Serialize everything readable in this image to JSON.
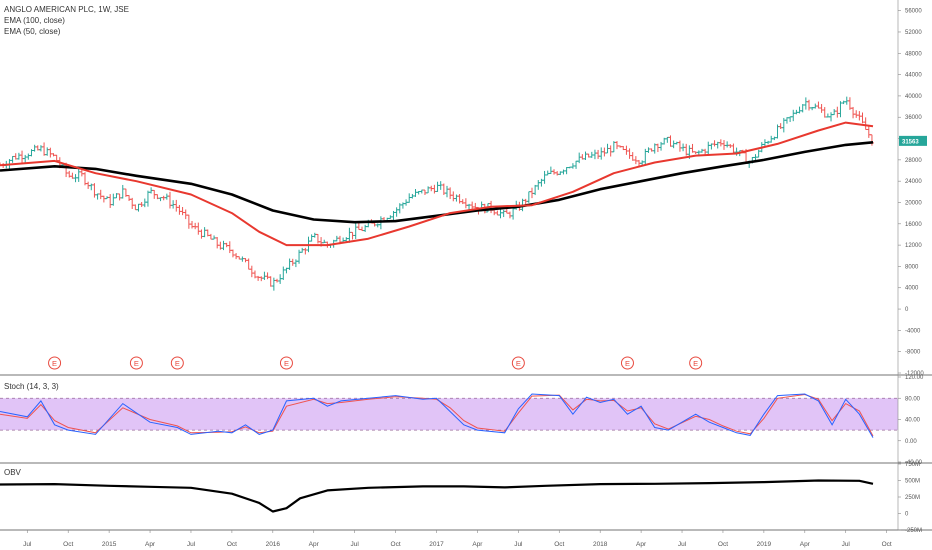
{
  "legend": {
    "symbol": "ANGLO AMERICAN PLC, 1W, JSE",
    "ema_long": "EMA (100, close)",
    "ema_short": "EMA (50, close)",
    "stoch": "Stoch (14, 3, 3)",
    "obv": "OBV"
  },
  "colors": {
    "up": "#26a69a",
    "down": "#ef5350",
    "ema_short": "#e8382f",
    "ema_long": "#000000",
    "stoch_k": "#2962ff",
    "stoch_d": "#ef5350",
    "stoch_band": "#e1c4f7",
    "price_tag": "#26a69a"
  },
  "chart_data": [
    {
      "type": "candlestick",
      "title": "ANGLO AMERICAN PLC, 1W, JSE",
      "ylim": [
        -12000,
        58000
      ],
      "y_ticks": [
        56000,
        52000,
        48000,
        44000,
        40000,
        36000,
        32000,
        28000,
        24000,
        20000,
        16000,
        12000,
        8000,
        4000,
        0,
        -4000,
        -8000,
        -12000
      ],
      "y_tick_labels": [
        "56000",
        "52000",
        "48000",
        "44000",
        "40000",
        "36000",
        "32000",
        "28000",
        "24000",
        "20000",
        "16000",
        "12000",
        "8000",
        "4000",
        "0",
        "-4000",
        "-8000",
        "-12000"
      ],
      "last_price": 31563,
      "last_price_label": "31563",
      "x_ticks": [
        "Jul",
        "Oct",
        "2015",
        "Apr",
        "Jul",
        "Oct",
        "2016",
        "Apr",
        "Jul",
        "Oct",
        "2017",
        "Apr",
        "Jul",
        "Oct",
        "2018",
        "Apr",
        "Jul",
        "Oct",
        "2019",
        "Apr",
        "Jul",
        "Oct"
      ],
      "price_path": [
        [
          "2014-05",
          27000
        ],
        [
          "2014-06",
          28500
        ],
        [
          "2014-08",
          30000
        ],
        [
          "2014-09",
          28500
        ],
        [
          "2014-10",
          25000
        ],
        [
          "2014-11",
          25000
        ],
        [
          "2014-12",
          22000
        ],
        [
          "2015-01",
          20000
        ],
        [
          "2015-02",
          22000
        ],
        [
          "2015-03",
          19000
        ],
        [
          "2015-04",
          22000
        ],
        [
          "2015-05",
          21000
        ],
        [
          "2015-06",
          19000
        ],
        [
          "2015-07",
          15500
        ],
        [
          "2015-08",
          14000
        ],
        [
          "2015-09",
          12000
        ],
        [
          "2015-10",
          11000
        ],
        [
          "2015-11",
          8500
        ],
        [
          "2015-12",
          6000
        ],
        [
          "2016-01",
          4800
        ],
        [
          "2016-02",
          7500
        ],
        [
          "2016-03",
          10500
        ],
        [
          "2016-04",
          13500
        ],
        [
          "2016-05",
          12000
        ],
        [
          "2016-06",
          13500
        ],
        [
          "2016-07",
          14500
        ],
        [
          "2016-08",
          15500
        ],
        [
          "2016-09",
          17000
        ],
        [
          "2016-10",
          18500
        ],
        [
          "2016-11",
          21000
        ],
        [
          "2016-12",
          22000
        ],
        [
          "2017-01",
          23000
        ],
        [
          "2017-02",
          21500
        ],
        [
          "2017-03",
          20500
        ],
        [
          "2017-04",
          19000
        ],
        [
          "2017-05",
          19000
        ],
        [
          "2017-06",
          17500
        ],
        [
          "2017-07",
          19000
        ],
        [
          "2017-08",
          22000
        ],
        [
          "2017-09",
          25000
        ],
        [
          "2017-10",
          26000
        ],
        [
          "2017-11",
          27500
        ],
        [
          "2017-12",
          28500
        ],
        [
          "2018-01",
          29000
        ],
        [
          "2018-02",
          30500
        ],
        [
          "2018-03",
          29000
        ],
        [
          "2018-04",
          28000
        ],
        [
          "2018-05",
          31000
        ],
        [
          "2018-06",
          31500
        ],
        [
          "2018-07",
          30000
        ],
        [
          "2018-08",
          29000
        ],
        [
          "2018-09",
          30500
        ],
        [
          "2018-10",
          31500
        ],
        [
          "2018-11",
          29500
        ],
        [
          "2018-12",
          27500
        ],
        [
          "2019-01",
          31000
        ],
        [
          "2019-02",
          33500
        ],
        [
          "2019-03",
          36000
        ],
        [
          "2019-04",
          39000
        ],
        [
          "2019-05",
          37500
        ],
        [
          "2019-06",
          36000
        ],
        [
          "2019-07",
          39500
        ],
        [
          "2019-08",
          35500
        ],
        [
          "2019-09",
          31563
        ]
      ],
      "ema50_path": [
        [
          "2014-05",
          27000
        ],
        [
          "2014-09",
          27800
        ],
        [
          "2014-12",
          25500
        ],
        [
          "2015-03",
          24000
        ],
        [
          "2015-07",
          21500
        ],
        [
          "2015-10",
          18000
        ],
        [
          "2015-12",
          14500
        ],
        [
          "2016-02",
          12000
        ],
        [
          "2016-05",
          12000
        ],
        [
          "2016-08",
          13200
        ],
        [
          "2016-11",
          15500
        ],
        [
          "2017-02",
          18000
        ],
        [
          "2017-05",
          19200
        ],
        [
          "2017-08",
          19500
        ],
        [
          "2017-11",
          22000
        ],
        [
          "2018-02",
          25500
        ],
        [
          "2018-05",
          27500
        ],
        [
          "2018-08",
          28800
        ],
        [
          "2018-11",
          29200
        ],
        [
          "2019-02",
          31000
        ],
        [
          "2019-05",
          33500
        ],
        [
          "2019-07",
          35000
        ],
        [
          "2019-09",
          34300
        ]
      ],
      "ema100_path": [
        [
          "2014-05",
          26000
        ],
        [
          "2014-09",
          26800
        ],
        [
          "2014-12",
          26300
        ],
        [
          "2015-03",
          25000
        ],
        [
          "2015-07",
          23500
        ],
        [
          "2015-10",
          21500
        ],
        [
          "2016-01",
          18500
        ],
        [
          "2016-04",
          16800
        ],
        [
          "2016-07",
          16300
        ],
        [
          "2016-10",
          16500
        ],
        [
          "2017-01",
          17500
        ],
        [
          "2017-04",
          18500
        ],
        [
          "2017-07",
          19200
        ],
        [
          "2017-10",
          20500
        ],
        [
          "2018-01",
          22500
        ],
        [
          "2018-04",
          24000
        ],
        [
          "2018-07",
          25500
        ],
        [
          "2018-10",
          26800
        ],
        [
          "2019-01",
          28000
        ],
        [
          "2019-04",
          29500
        ],
        [
          "2019-07",
          30800
        ],
        [
          "2019-09",
          31300
        ]
      ],
      "earnings_markers": [
        {
          "date": "2014-09",
          "label": "E"
        },
        {
          "date": "2015-03",
          "label": "E"
        },
        {
          "date": "2015-06",
          "label": "E"
        },
        {
          "date": "2016-02",
          "label": "E"
        },
        {
          "date": "2017-07",
          "label": "E"
        },
        {
          "date": "2018-03",
          "label": "E"
        },
        {
          "date": "2018-08",
          "label": "E"
        }
      ]
    },
    {
      "type": "line",
      "title": "Stoch (14, 3, 3)",
      "ylim": [
        -40,
        120
      ],
      "y_ticks": [
        120,
        80,
        40,
        0,
        -40
      ],
      "y_tick_labels": [
        "120.00",
        "80.00",
        "40.00",
        "0.00",
        "-40.00"
      ],
      "band": [
        20,
        80
      ],
      "k_path": [
        [
          "2014-05",
          55
        ],
        [
          "2014-07",
          45
        ],
        [
          "2014-08",
          75
        ],
        [
          "2014-09",
          30
        ],
        [
          "2014-10",
          20
        ],
        [
          "2014-12",
          12
        ],
        [
          "2015-02",
          70
        ],
        [
          "2015-04",
          35
        ],
        [
          "2015-06",
          25
        ],
        [
          "2015-07",
          12
        ],
        [
          "2015-09",
          18
        ],
        [
          "2015-10",
          15
        ],
        [
          "2015-11",
          30
        ],
        [
          "2015-12",
          12
        ],
        [
          "2016-01",
          20
        ],
        [
          "2016-02",
          75
        ],
        [
          "2016-04",
          80
        ],
        [
          "2016-05",
          65
        ],
        [
          "2016-06",
          75
        ],
        [
          "2016-08",
          80
        ],
        [
          "2016-10",
          85
        ],
        [
          "2016-12",
          78
        ],
        [
          "2017-01",
          80
        ],
        [
          "2017-02",
          55
        ],
        [
          "2017-03",
          30
        ],
        [
          "2017-04",
          20
        ],
        [
          "2017-06",
          15
        ],
        [
          "2017-07",
          60
        ],
        [
          "2017-08",
          88
        ],
        [
          "2017-10",
          85
        ],
        [
          "2017-11",
          50
        ],
        [
          "2017-12",
          82
        ],
        [
          "2018-01",
          72
        ],
        [
          "2018-02",
          78
        ],
        [
          "2018-03",
          50
        ],
        [
          "2018-04",
          65
        ],
        [
          "2018-05",
          25
        ],
        [
          "2018-06",
          20
        ],
        [
          "2018-08",
          50
        ],
        [
          "2018-09",
          35
        ],
        [
          "2018-10",
          25
        ],
        [
          "2018-11",
          15
        ],
        [
          "2018-12",
          10
        ],
        [
          "2019-01",
          50
        ],
        [
          "2019-02",
          85
        ],
        [
          "2019-04",
          88
        ],
        [
          "2019-05",
          75
        ],
        [
          "2019-06",
          30
        ],
        [
          "2019-07",
          78
        ],
        [
          "2019-08",
          50
        ],
        [
          "2019-09",
          6
        ]
      ],
      "d_path": [
        [
          "2014-05",
          50
        ],
        [
          "2014-07",
          42
        ],
        [
          "2014-08",
          68
        ],
        [
          "2014-09",
          38
        ],
        [
          "2014-10",
          25
        ],
        [
          "2014-12",
          15
        ],
        [
          "2015-02",
          62
        ],
        [
          "2015-04",
          40
        ],
        [
          "2015-06",
          28
        ],
        [
          "2015-07",
          15
        ],
        [
          "2015-09",
          16
        ],
        [
          "2015-10",
          17
        ],
        [
          "2015-11",
          26
        ],
        [
          "2015-12",
          15
        ],
        [
          "2016-01",
          18
        ],
        [
          "2016-02",
          65
        ],
        [
          "2016-04",
          78
        ],
        [
          "2016-05",
          70
        ],
        [
          "2016-06",
          72
        ],
        [
          "2016-08",
          78
        ],
        [
          "2016-10",
          83
        ],
        [
          "2016-12",
          80
        ],
        [
          "2017-01",
          78
        ],
        [
          "2017-02",
          62
        ],
        [
          "2017-03",
          38
        ],
        [
          "2017-04",
          24
        ],
        [
          "2017-06",
          18
        ],
        [
          "2017-07",
          52
        ],
        [
          "2017-08",
          84
        ],
        [
          "2017-10",
          86
        ],
        [
          "2017-11",
          58
        ],
        [
          "2017-12",
          78
        ],
        [
          "2018-01",
          75
        ],
        [
          "2018-02",
          76
        ],
        [
          "2018-03",
          56
        ],
        [
          "2018-04",
          62
        ],
        [
          "2018-05",
          32
        ],
        [
          "2018-06",
          22
        ],
        [
          "2018-08",
          46
        ],
        [
          "2018-09",
          40
        ],
        [
          "2018-10",
          28
        ],
        [
          "2018-11",
          18
        ],
        [
          "2018-12",
          13
        ],
        [
          "2019-01",
          42
        ],
        [
          "2019-02",
          80
        ],
        [
          "2019-04",
          87
        ],
        [
          "2019-05",
          78
        ],
        [
          "2019-06",
          38
        ],
        [
          "2019-07",
          70
        ],
        [
          "2019-08",
          56
        ],
        [
          "2019-09",
          9
        ]
      ]
    },
    {
      "type": "line",
      "title": "OBV",
      "ylim": [
        -250,
        750
      ],
      "y_ticks": [
        750,
        500,
        250,
        0,
        -250
      ],
      "y_tick_labels": [
        "750M",
        "500M",
        "250M",
        "0",
        "-250M"
      ],
      "obv_path": [
        [
          "2014-05",
          440
        ],
        [
          "2014-09",
          445
        ],
        [
          "2015-01",
          420
        ],
        [
          "2015-04",
          405
        ],
        [
          "2015-07",
          390
        ],
        [
          "2015-10",
          300
        ],
        [
          "2015-12",
          160
        ],
        [
          "2016-01",
          30
        ],
        [
          "2016-02",
          80
        ],
        [
          "2016-03",
          230
        ],
        [
          "2016-05",
          350
        ],
        [
          "2016-08",
          390
        ],
        [
          "2016-12",
          410
        ],
        [
          "2017-03",
          410
        ],
        [
          "2017-06",
          395
        ],
        [
          "2017-09",
          420
        ],
        [
          "2018-01",
          445
        ],
        [
          "2018-05",
          450
        ],
        [
          "2018-09",
          460
        ],
        [
          "2019-01",
          475
        ],
        [
          "2019-05",
          500
        ],
        [
          "2019-08",
          495
        ],
        [
          "2019-09",
          450
        ]
      ]
    }
  ]
}
